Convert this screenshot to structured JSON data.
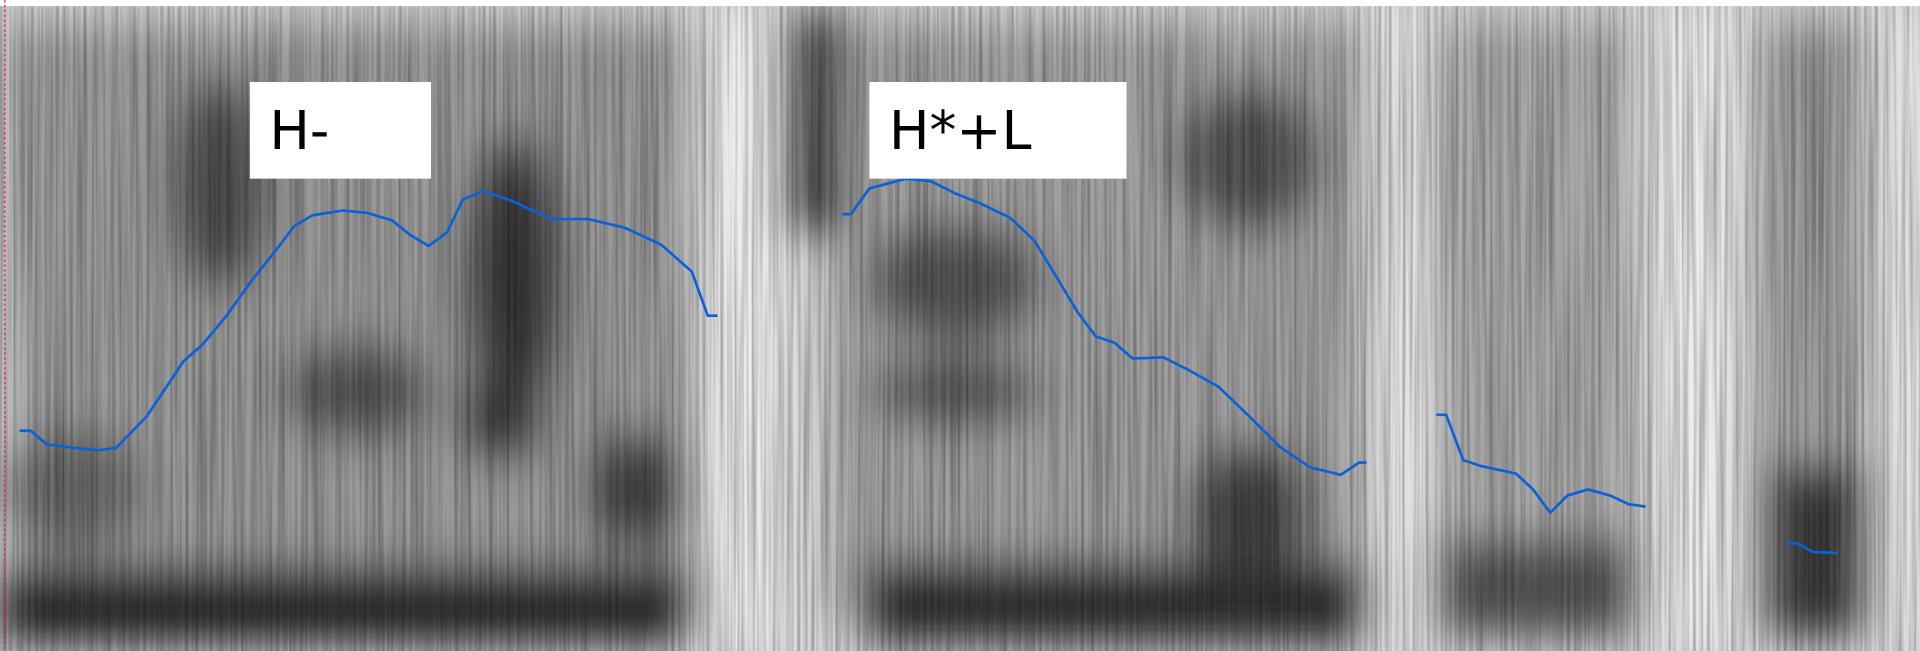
{
  "labels": [
    {
      "text": "H-"
    },
    {
      "text": "H*+L"
    }
  ]
}
